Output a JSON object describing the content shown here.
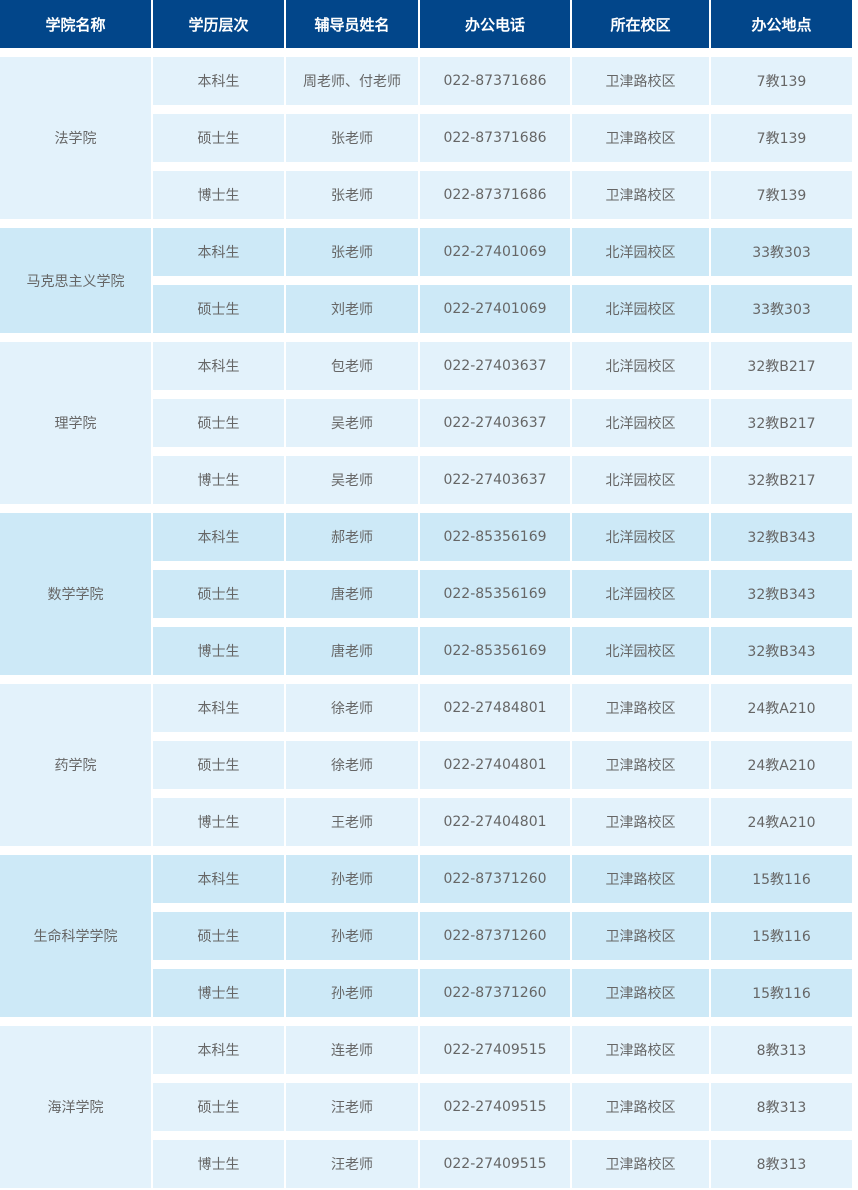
{
  "headers": [
    "学院名称",
    "学历层次",
    "辅导员姓名",
    "办公电话",
    "所在校区",
    "办公地点"
  ],
  "groups": [
    {
      "college": "法学院",
      "rows": [
        [
          "本科生",
          "周老师、付老师",
          "022-87371686",
          "卫津路校区",
          "7教139"
        ],
        [
          "硕士生",
          "张老师",
          "022-87371686",
          "卫津路校区",
          "7教139"
        ],
        [
          "博士生",
          "张老师",
          "022-87371686",
          "卫津路校区",
          "7教139"
        ]
      ]
    },
    {
      "college": "马克思主义学院",
      "rows": [
        [
          "本科生",
          "张老师",
          "022-27401069",
          "北洋园校区",
          "33教303"
        ],
        [
          "硕士生",
          "刘老师",
          "022-27401069",
          "北洋园校区",
          "33教303"
        ]
      ]
    },
    {
      "college": "理学院",
      "rows": [
        [
          "本科生",
          "包老师",
          "022-27403637",
          "北洋园校区",
          "32教B217"
        ],
        [
          "硕士生",
          "吴老师",
          "022-27403637",
          "北洋园校区",
          "32教B217"
        ],
        [
          "博士生",
          "吴老师",
          "022-27403637",
          "北洋园校区",
          "32教B217"
        ]
      ]
    },
    {
      "college": "数学学院",
      "rows": [
        [
          "本科生",
          "郝老师",
          "022-85356169",
          "北洋园校区",
          "32教B343"
        ],
        [
          "硕士生",
          "唐老师",
          "022-85356169",
          "北洋园校区",
          "32教B343"
        ],
        [
          "博士生",
          "唐老师",
          "022-85356169",
          "北洋园校区",
          "32教B343"
        ]
      ]
    },
    {
      "college": "药学院",
      "rows": [
        [
          "本科生",
          "徐老师",
          "022-27484801",
          "卫津路校区",
          "24教A210"
        ],
        [
          "硕士生",
          "徐老师",
          "022-27404801",
          "卫津路校区",
          "24教A210"
        ],
        [
          "博士生",
          "王老师",
          "022-27404801",
          "卫津路校区",
          "24教A210"
        ]
      ]
    },
    {
      "college": "生命科学学院",
      "rows": [
        [
          "本科生",
          "孙老师",
          "022-87371260",
          "卫津路校区",
          "15教116"
        ],
        [
          "硕士生",
          "孙老师",
          "022-87371260",
          "卫津路校区",
          "15教116"
        ],
        [
          "博士生",
          "孙老师",
          "022-87371260",
          "卫津路校区",
          "15教116"
        ]
      ]
    },
    {
      "college": "海洋学院",
      "rows": [
        [
          "本科生",
          "连老师",
          "022-27409515",
          "卫津路校区",
          "8教313"
        ],
        [
          "硕士生",
          "汪老师",
          "022-27409515",
          "卫津路校区",
          "8教313"
        ],
        [
          "博士生",
          "汪老师",
          "022-27409515",
          "卫津路校区",
          "8教313"
        ]
      ]
    }
  ],
  "colors": {
    "header": "#02468a",
    "row_light": "#e3f2fb",
    "row_dark": "#cde9f7",
    "text": "#666666"
  }
}
